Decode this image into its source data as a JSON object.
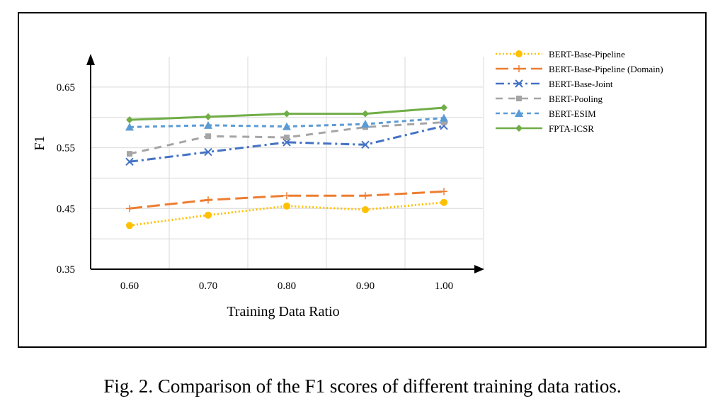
{
  "chart_data": {
    "type": "line",
    "title": "",
    "xlabel": "Training Data Ratio",
    "ylabel": "F1",
    "x": [
      "0.60",
      "0.70",
      "0.80",
      "0.90",
      "1.00"
    ],
    "ylim": [
      0.35,
      0.7
    ],
    "yticks": [
      "0.35",
      "0.45",
      "0.55",
      "0.65"
    ],
    "grid": true,
    "legend_position": "right",
    "series": [
      {
        "name": "BERT-Base-Pipeline",
        "color": "#FFC000",
        "style": "dotted",
        "marker": "circle",
        "values": [
          0.422,
          0.439,
          0.454,
          0.448,
          0.46
        ]
      },
      {
        "name": "BERT-Base-Pipeline (Domain)",
        "color": "#ED7D31",
        "style": "longdash",
        "marker": "plus",
        "values": [
          0.45,
          0.464,
          0.471,
          0.471,
          0.478
        ]
      },
      {
        "name": "BERT-Base-Joint",
        "color": "#4472C4",
        "style": "dashdot",
        "marker": "x",
        "values": [
          0.527,
          0.543,
          0.559,
          0.555,
          0.586
        ]
      },
      {
        "name": "BERT-Pooling",
        "color": "#A5A5A5",
        "style": "dashed",
        "marker": "square",
        "values": [
          0.54,
          0.569,
          0.567,
          0.584,
          0.592
        ]
      },
      {
        "name": "BERT-ESIM",
        "color": "#5B9BD5",
        "style": "shortdash",
        "marker": "triangle",
        "values": [
          0.584,
          0.587,
          0.585,
          0.589,
          0.599
        ]
      },
      {
        "name": "FPTA-ICSR",
        "color": "#70AD47",
        "style": "solid",
        "marker": "diamond",
        "values": [
          0.596,
          0.601,
          0.606,
          0.606,
          0.616
        ]
      }
    ]
  },
  "caption": "Fig. 2. Comparison of the F1 scores of different training data ratios."
}
